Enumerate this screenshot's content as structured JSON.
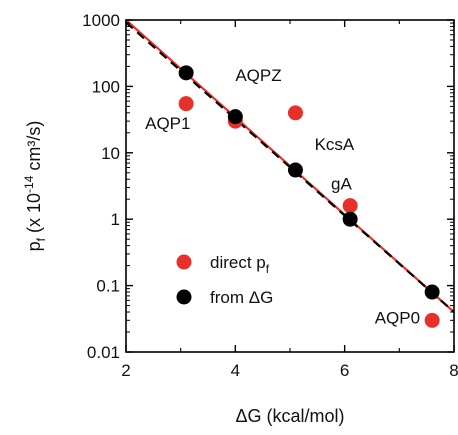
{
  "chart_data": {
    "type": "scatter",
    "xlabel": "ΔG (kcal/mol)",
    "ylabel_main": "p",
    "ylabel_sub": "f",
    "ylabel_rest": " (x 10",
    "ylabel_exp": "-14",
    "ylabel_unit": " cm³/s)",
    "xlim": [
      2,
      8
    ],
    "ylim": [
      0.01,
      1000
    ],
    "yscale": "log",
    "x_ticks": [
      {
        "value": 2,
        "label": "2"
      },
      {
        "value": 4,
        "label": "4"
      },
      {
        "value": 6,
        "label": "6"
      },
      {
        "value": 8,
        "label": "8"
      }
    ],
    "y_ticks": [
      {
        "value": 0.01,
        "label": "0.01"
      },
      {
        "value": 0.1,
        "label": "0.1"
      },
      {
        "value": 1,
        "label": "1"
      },
      {
        "value": 10,
        "label": "10"
      },
      {
        "value": 100,
        "label": "100"
      },
      {
        "value": 1000,
        "label": "1000"
      }
    ],
    "series": [
      {
        "name_main": "direct p",
        "name_sub": "f",
        "color": "#e8302a",
        "points": [
          {
            "x": 3.1,
            "y": 55
          },
          {
            "x": 4.0,
            "y": 30
          },
          {
            "x": 5.1,
            "y": 40
          },
          {
            "x": 6.1,
            "y": 1.6
          },
          {
            "x": 7.6,
            "y": 0.03
          }
        ]
      },
      {
        "name_main": "from ΔG",
        "name_sub": "",
        "color": "#000000",
        "points": [
          {
            "x": 3.1,
            "y": 160
          },
          {
            "x": 4.0,
            "y": 35
          },
          {
            "x": 5.1,
            "y": 5.5
          },
          {
            "x": 6.1,
            "y": 1.0
          },
          {
            "x": 7.6,
            "y": 0.08
          }
        ]
      }
    ],
    "fit_lines": [
      {
        "color": "#e8302a",
        "style": "solid",
        "x": [
          2,
          8
        ],
        "y": [
          1000,
          0.04
        ]
      },
      {
        "color": "#000000",
        "style": "dashed",
        "x": [
          2,
          8
        ],
        "y": [
          920,
          0.04
        ]
      }
    ],
    "annotations": [
      {
        "text": "AQP1",
        "x": 2.35,
        "y": 23
      },
      {
        "text": "AQPZ",
        "x": 4.0,
        "y": 120
      },
      {
        "text": "KcsA",
        "x": 5.45,
        "y": 11
      },
      {
        "text": "gA",
        "x": 5.75,
        "y": 2.8
      },
      {
        "text": "AQP0",
        "x": 6.55,
        "y": 0.027
      }
    ],
    "legend_position": "bottom-left",
    "grid": false
  }
}
